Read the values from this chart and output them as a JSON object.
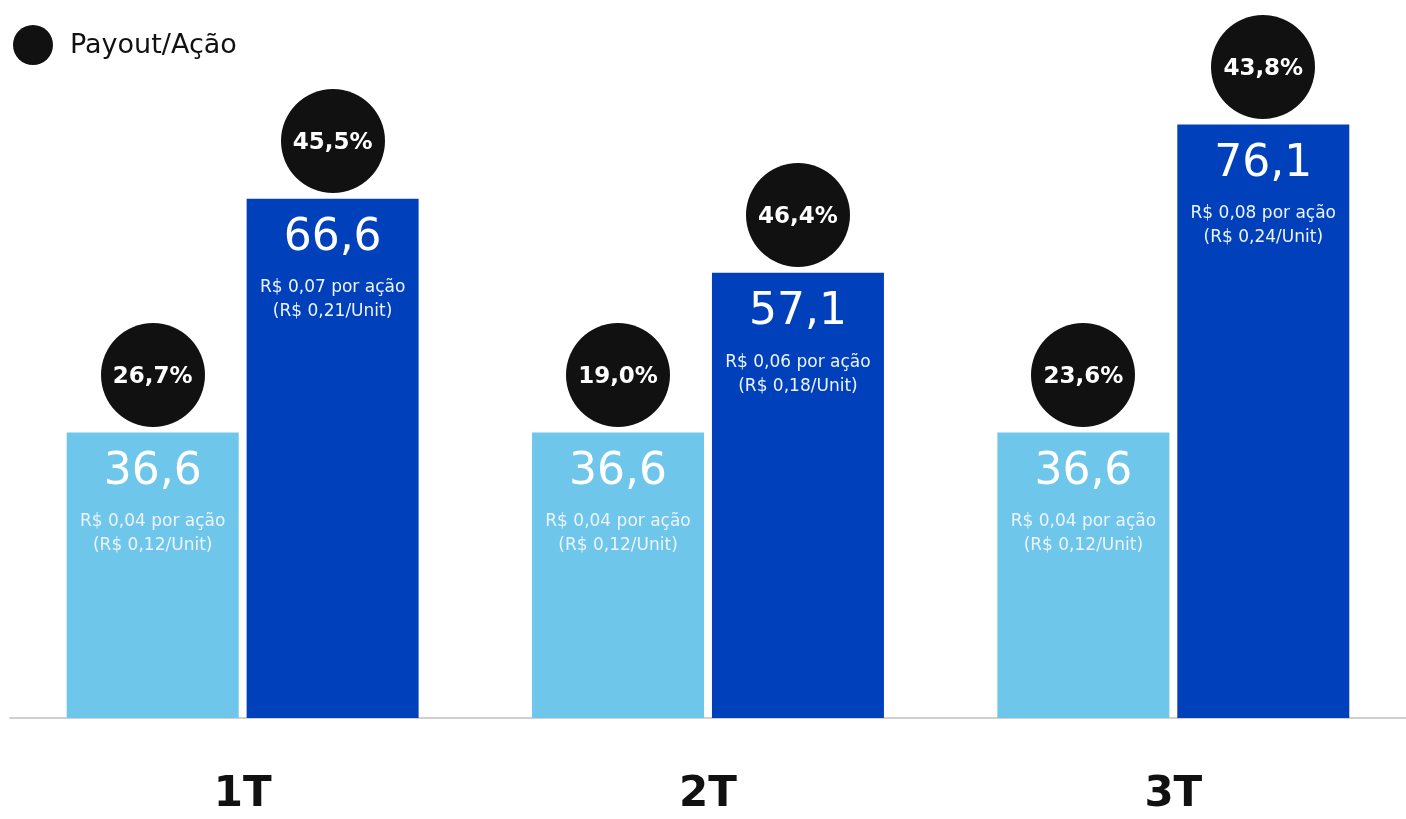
{
  "chart_data": {
    "type": "bar",
    "categories": [
      "1T",
      "2T",
      "3T"
    ],
    "series": [
      {
        "color": "#6ec6ea",
        "values": [
          36.6,
          36.6,
          36.6
        ],
        "value_labels": [
          "36,6",
          "36,6",
          "36,6"
        ]
      },
      {
        "color": "#0041bb",
        "values": [
          66.6,
          57.1,
          76.1
        ],
        "value_labels": [
          "66,6",
          "57,1",
          "76,1"
        ]
      }
    ],
    "annotations": [
      "Payout/Ação",
      {
        "text": "26,7%",
        "x": "1T",
        "y": 36.6
      },
      {
        "text": "R$ 0,04 por ação\n(R$ 0,12/Unit)",
        "x": "1T",
        "y": 23.8
      },
      {
        "text": "45,5%",
        "x": "1T",
        "y": 66.6
      },
      {
        "text": "R$ 0,07 por ação\n(R$ 0,21/Unit)",
        "x": "1T",
        "y": 53.8
      },
      {
        "text": "19,0%",
        "x": "2T",
        "y": 36.6
      },
      {
        "text": "R$ 0,04 por ação\n(R$ 0,12/Unit)",
        "x": "2T",
        "y": 23.8
      },
      {
        "text": "46,4%",
        "x": "2T",
        "y": 57.1
      },
      {
        "text": "R$ 0,06 por ação\n(R$ 0,18/Unit)",
        "x": "2T",
        "y": 44.3
      },
      {
        "text": "23,6%",
        "x": "3T",
        "y": 36.6
      },
      {
        "text": "R$ 0,04 por ação\n(R$ 0,12/Unit)",
        "x": "3T",
        "y": 23.8
      },
      {
        "text": "43,8%",
        "x": "3T",
        "y": 76.1
      },
      {
        "text": "R$ 0,08 por ação\n(R$ 0,24/Unit)",
        "x": "3T",
        "y": 63.3
      }
    ],
    "data_labels": false
  }
}
